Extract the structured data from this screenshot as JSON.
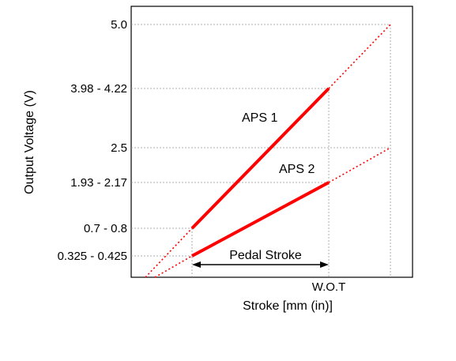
{
  "chart_data": {
    "type": "line",
    "xlabel": "Stroke [mm (in)]",
    "ylabel": "Output Voltage (V)",
    "x_tick_labels": [
      "W.O.T"
    ],
    "y_tick_labels": [
      "5.0",
      "3.98 - 4.22",
      "2.5",
      "1.93 - 2.17",
      "0.7 - 0.8",
      "0.325 - 0.425"
    ],
    "grid": true,
    "series": [
      {
        "name": "APS 1",
        "x": [
          0,
          1
        ],
        "y": [
          0.75,
          4.1
        ],
        "extended_to_y_at_full_stroke": 5.0,
        "color": "#ff0000"
      },
      {
        "name": "APS 2",
        "x": [
          0,
          1
        ],
        "y": [
          0.375,
          2.05
        ],
        "extended_to_y_at_full_stroke": 2.5,
        "color": "#ff0000"
      }
    ],
    "annotations": [
      "Pedal Stroke"
    ]
  }
}
